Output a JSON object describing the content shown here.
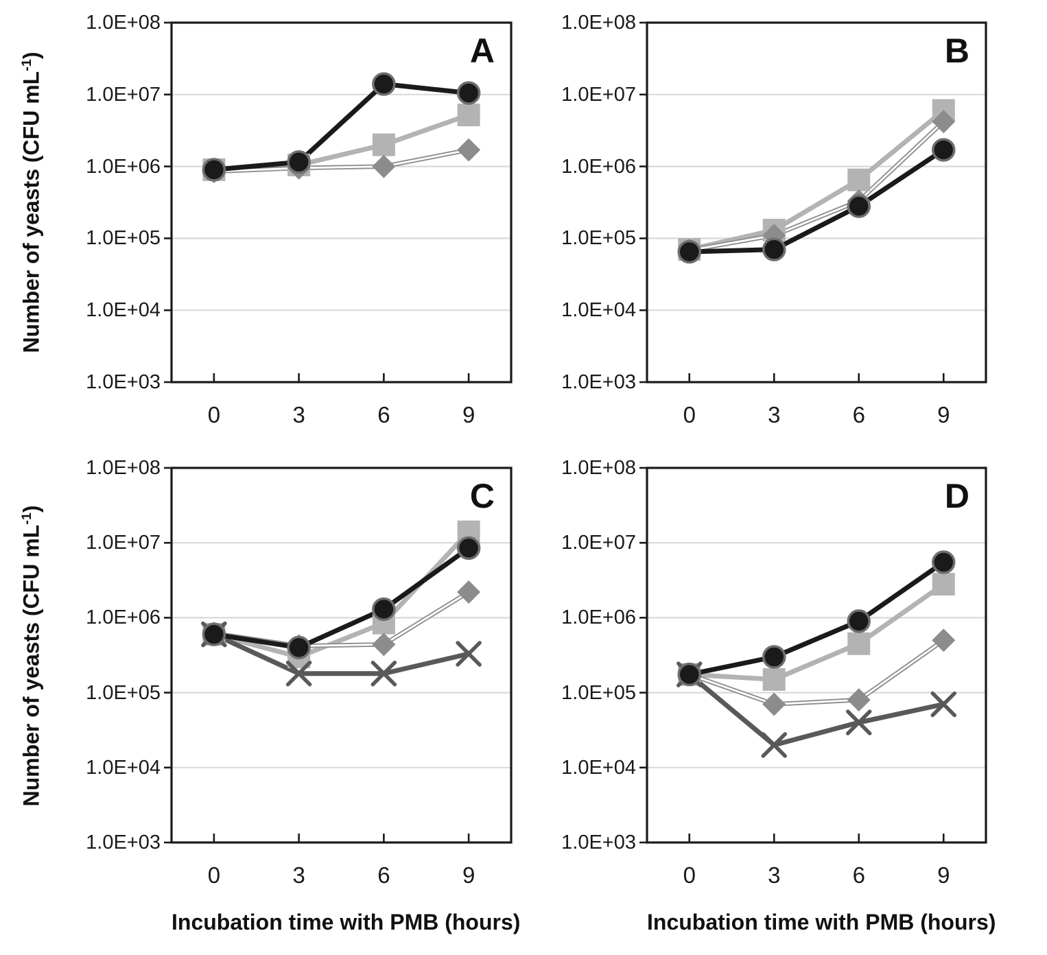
{
  "figure": {
    "y_axis": {
      "title_prefix": "Number of yeasts (CFU mL",
      "title_sup": "-1",
      "title_suffix": ")",
      "tick_labels": [
        "1.0E+08",
        "1.0E+07",
        "1.0E+06",
        "1.0E+05",
        "1.0E+04",
        "1.0E+03"
      ],
      "log_min_exp": 3,
      "log_max_exp": 8
    },
    "x_axis": {
      "title": "Incubation time with PMB (hours)",
      "tick_labels": [
        "0",
        "3",
        "6",
        "9"
      ]
    },
    "colors": {
      "border": "#1a1a1a",
      "gridline": "#d9d9d9",
      "black_series": "#1a1a1a",
      "circle_outline": "#6e6e6e",
      "light_gray_series": "#b3b3b3",
      "mid_gray_series": "#8c8c8c",
      "dark_gray_series": "#595959"
    }
  },
  "chart_data": [
    {
      "type": "line",
      "title": "A",
      "x": [
        0,
        3,
        6,
        9
      ],
      "xlabel": "Incubation time with PMB (hours)",
      "ylabel": "Number of yeasts (CFU mL-1)",
      "yscale": "log",
      "ylim": [
        1000,
        100000000
      ],
      "grid": true,
      "legend": "none",
      "series": [
        {
          "name": "filled-circle",
          "marker": "circle",
          "color": "#1a1a1a",
          "line_style": "solid",
          "values": [
            900000,
            1150000,
            14000000,
            10500000
          ]
        },
        {
          "name": "filled-square",
          "marker": "square",
          "color": "#b3b3b3",
          "line_style": "solid",
          "values": [
            900000,
            1050000,
            2000000,
            5200000
          ]
        },
        {
          "name": "filled-diamond",
          "marker": "diamond",
          "color": "#8c8c8c",
          "line_style": "double",
          "values": [
            850000,
            950000,
            1000000,
            1700000
          ]
        }
      ]
    },
    {
      "type": "line",
      "title": "B",
      "x": [
        0,
        3,
        6,
        9
      ],
      "xlabel": "Incubation time with PMB (hours)",
      "ylabel": "Number of yeasts (CFU mL-1)",
      "yscale": "log",
      "ylim": [
        1000,
        100000000
      ],
      "grid": true,
      "legend": "none",
      "series": [
        {
          "name": "filled-circle",
          "marker": "circle",
          "color": "#1a1a1a",
          "line_style": "solid",
          "values": [
            65000,
            70000,
            280000,
            1700000
          ]
        },
        {
          "name": "filled-square",
          "marker": "square",
          "color": "#b3b3b3",
          "line_style": "solid",
          "values": [
            70000,
            130000,
            650000,
            6000000
          ]
        },
        {
          "name": "filled-diamond",
          "marker": "diamond",
          "color": "#8c8c8c",
          "line_style": "double",
          "values": [
            68000,
            110000,
            330000,
            4200000
          ]
        }
      ]
    },
    {
      "type": "line",
      "title": "C",
      "x": [
        0,
        3,
        6,
        9
      ],
      "xlabel": "Incubation time with PMB (hours)",
      "ylabel": "Number of yeasts (CFU mL-1)",
      "yscale": "log",
      "ylim": [
        1000,
        100000000
      ],
      "grid": true,
      "legend": "none",
      "series": [
        {
          "name": "filled-circle",
          "marker": "circle",
          "color": "#1a1a1a",
          "line_style": "solid",
          "values": [
            600000,
            400000,
            1300000,
            8500000
          ]
        },
        {
          "name": "filled-square",
          "marker": "square",
          "color": "#b3b3b3",
          "line_style": "solid",
          "values": [
            600000,
            300000,
            850000,
            14000000
          ]
        },
        {
          "name": "filled-diamond",
          "marker": "diamond",
          "color": "#8c8c8c",
          "line_style": "double",
          "values": [
            620000,
            420000,
            440000,
            2200000
          ]
        },
        {
          "name": "x-cross",
          "marker": "x",
          "color": "#595959",
          "line_style": "solid",
          "values": [
            600000,
            180000,
            180000,
            330000
          ]
        }
      ]
    },
    {
      "type": "line",
      "title": "D",
      "x": [
        0,
        3,
        6,
        9
      ],
      "xlabel": "Incubation time with PMB (hours)",
      "ylabel": "Number of yeasts (CFU mL-1)",
      "yscale": "log",
      "ylim": [
        1000,
        100000000
      ],
      "grid": true,
      "legend": "none",
      "series": [
        {
          "name": "filled-circle",
          "marker": "circle",
          "color": "#1a1a1a",
          "line_style": "solid",
          "values": [
            175000,
            300000,
            900000,
            5500000
          ]
        },
        {
          "name": "filled-square",
          "marker": "square",
          "color": "#b3b3b3",
          "line_style": "solid",
          "values": [
            175000,
            150000,
            450000,
            2800000
          ]
        },
        {
          "name": "filled-diamond",
          "marker": "diamond",
          "color": "#8c8c8c",
          "line_style": "double",
          "values": [
            175000,
            70000,
            80000,
            500000
          ]
        },
        {
          "name": "x-cross",
          "marker": "x",
          "color": "#595959",
          "line_style": "solid",
          "values": [
            175000,
            20000,
            40000,
            70000
          ]
        }
      ]
    }
  ]
}
